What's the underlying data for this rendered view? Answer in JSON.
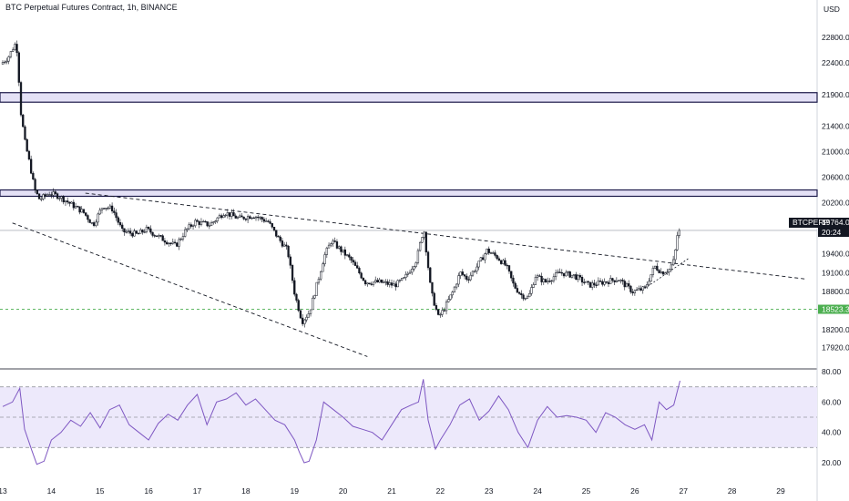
{
  "header": {
    "title": "BTC Perpetual Futures Contract, 1h, BINANCE"
  },
  "colors": {
    "candle": "#131722",
    "zone_fill": "#e4e1f6",
    "zone_border": "#1c1a4a",
    "rsi_line": "#7e57c2",
    "rsi_band": "#ede9fb",
    "support_line": "#4caf50",
    "support_badge": "#4caf50",
    "price_badge": "#131722"
  },
  "chart_data": [
    {
      "type": "candlestick",
      "currency": "USD",
      "x_tick_labels": [
        "13",
        "14",
        "15",
        "16",
        "17",
        "18",
        "19",
        "20",
        "21",
        "22",
        "23",
        "24",
        "25",
        "26",
        "27",
        "28",
        "29"
      ],
      "y_tick_labels": [
        "22800.0",
        "22400.0",
        "21900.0",
        "21400.0",
        "21000.0",
        "20600.0",
        "20200.0",
        "19400.0",
        "19100.0",
        "18800.0",
        "18200.0",
        "17920.0"
      ],
      "x_range_days": [
        13,
        29.5
      ],
      "y_range": [
        17800,
        23100
      ],
      "price_anchors": [
        [
          13.0,
          22380
        ],
        [
          13.15,
          22480
        ],
        [
          13.3,
          22700
        ],
        [
          13.35,
          22550
        ],
        [
          13.4,
          21700
        ],
        [
          13.5,
          21150
        ],
        [
          13.6,
          20800
        ],
        [
          13.7,
          20400
        ],
        [
          13.8,
          20250
        ],
        [
          14.0,
          20350
        ],
        [
          14.2,
          20300
        ],
        [
          14.5,
          20150
        ],
        [
          14.7,
          20050
        ],
        [
          14.9,
          19850
        ],
        [
          15.1,
          20150
        ],
        [
          15.3,
          20100
        ],
        [
          15.5,
          19750
        ],
        [
          15.8,
          19700
        ],
        [
          16.0,
          19780
        ],
        [
          16.3,
          19640
        ],
        [
          16.6,
          19520
        ],
        [
          16.8,
          19760
        ],
        [
          17.0,
          19900
        ],
        [
          17.3,
          19850
        ],
        [
          17.6,
          20050
        ],
        [
          17.9,
          19950
        ],
        [
          18.2,
          20000
        ],
        [
          18.5,
          19900
        ],
        [
          18.7,
          19650
        ],
        [
          18.9,
          19450
        ],
        [
          19.05,
          18750
        ],
        [
          19.2,
          18330
        ],
        [
          19.35,
          18480
        ],
        [
          19.5,
          18900
        ],
        [
          19.65,
          19350
        ],
        [
          19.8,
          19600
        ],
        [
          20.0,
          19450
        ],
        [
          20.2,
          19300
        ],
        [
          20.5,
          18950
        ],
        [
          20.8,
          18950
        ],
        [
          21.1,
          18900
        ],
        [
          21.3,
          19000
        ],
        [
          21.55,
          19300
        ],
        [
          21.7,
          19800
        ],
        [
          21.85,
          18800
        ],
        [
          22.0,
          18400
        ],
        [
          22.1,
          18500
        ],
        [
          22.3,
          18800
        ],
        [
          22.45,
          19100
        ],
        [
          22.6,
          19000
        ],
        [
          22.8,
          19200
        ],
        [
          23.0,
          19450
        ],
        [
          23.2,
          19350
        ],
        [
          23.4,
          19200
        ],
        [
          23.55,
          18900
        ],
        [
          23.7,
          18750
        ],
        [
          23.85,
          18700
        ],
        [
          24.0,
          19050
        ],
        [
          24.2,
          18950
        ],
        [
          24.5,
          19100
        ],
        [
          24.8,
          19050
        ],
        [
          25.1,
          18900
        ],
        [
          25.4,
          18950
        ],
        [
          25.7,
          19000
        ],
        [
          26.0,
          18800
        ],
        [
          26.25,
          18850
        ],
        [
          26.45,
          19200
        ],
        [
          26.6,
          19100
        ],
        [
          26.75,
          19150
        ],
        [
          26.85,
          19300
        ],
        [
          26.93,
          19764
        ]
      ],
      "last_price": {
        "symbol": "BTCPERP",
        "value": "19764.0",
        "countdown": "20:24"
      },
      "support_level": {
        "label": "18523.3",
        "value": 18523.3
      },
      "resistance_zones": [
        [
          21780,
          21930
        ],
        [
          20300,
          20400
        ]
      ],
      "trendlines": [
        {
          "style": "dashed",
          "points": [
            [
              14.7,
              20350
            ],
            [
              29.5,
              19000
            ]
          ]
        },
        {
          "style": "dashed",
          "points": [
            [
              13.2,
              19880
            ],
            [
              20.5,
              17780
            ]
          ]
        }
      ]
    },
    {
      "type": "line",
      "name": "RSI",
      "y_tick_labels": [
        "80.00",
        "60.00",
        "40.00",
        "20.00"
      ],
      "y_range": [
        12,
        82
      ],
      "bands": [
        30,
        70
      ],
      "midline": 50,
      "x": [
        13.0,
        13.2,
        13.35,
        13.45,
        13.6,
        13.7,
        13.85,
        14.0,
        14.2,
        14.4,
        14.6,
        14.8,
        15.0,
        15.2,
        15.4,
        15.6,
        15.8,
        16.0,
        16.2,
        16.4,
        16.6,
        16.8,
        17.0,
        17.2,
        17.4,
        17.6,
        17.8,
        18.0,
        18.2,
        18.4,
        18.6,
        18.8,
        19.0,
        19.1,
        19.2,
        19.3,
        19.45,
        19.6,
        19.8,
        20.0,
        20.2,
        20.4,
        20.6,
        20.8,
        21.0,
        21.2,
        21.4,
        21.55,
        21.65,
        21.75,
        21.9,
        22.0,
        22.2,
        22.4,
        22.6,
        22.8,
        23.0,
        23.2,
        23.4,
        23.6,
        23.8,
        24.0,
        24.2,
        24.4,
        24.6,
        24.8,
        25.0,
        25.2,
        25.4,
        25.6,
        25.8,
        26.0,
        26.2,
        26.35,
        26.5,
        26.65,
        26.8,
        26.93
      ],
      "y": [
        57,
        60,
        69,
        42,
        28,
        19,
        21,
        35,
        40,
        48,
        44,
        53,
        43,
        55,
        58,
        45,
        40,
        35,
        46,
        52,
        48,
        58,
        65,
        45,
        60,
        62,
        66,
        58,
        62,
        55,
        48,
        45,
        35,
        27,
        20,
        21,
        35,
        60,
        55,
        50,
        44,
        42,
        40,
        35,
        45,
        55,
        58,
        60,
        75,
        48,
        29,
        35,
        45,
        58,
        62,
        48,
        54,
        64,
        55,
        40,
        30,
        48,
        57,
        50,
        51,
        50,
        48,
        40,
        53,
        50,
        45,
        42,
        45,
        35,
        60,
        55,
        58,
        74
      ]
    }
  ]
}
